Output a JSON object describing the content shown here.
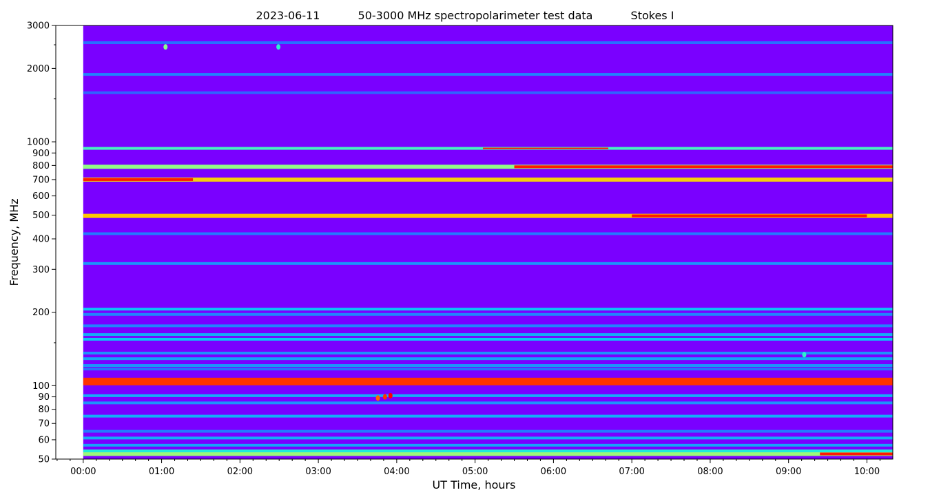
{
  "chart_data": {
    "type": "heatmap",
    "title_parts": [
      "2023-06-11",
      "50-3000 MHz spectropolarimeter test data",
      "Stokes I"
    ],
    "xlabel": "UT Time, hours",
    "ylabel": "Frequency, MHz",
    "x_unit": "hours UT",
    "xlim": [
      -0.35,
      10.33
    ],
    "y_scale": "log",
    "ylim": [
      50,
      3000
    ],
    "data_start_hour": 0,
    "x_ticks": [
      {
        "value": 0,
        "label": "00:00"
      },
      {
        "value": 1,
        "label": "01:00"
      },
      {
        "value": 2,
        "label": "02:00"
      },
      {
        "value": 3,
        "label": "03:00"
      },
      {
        "value": 4,
        "label": "04:00"
      },
      {
        "value": 5,
        "label": "05:00"
      },
      {
        "value": 6,
        "label": "06:00"
      },
      {
        "value": 7,
        "label": "07:00"
      },
      {
        "value": 8,
        "label": "08:00"
      },
      {
        "value": 9,
        "label": "09:00"
      },
      {
        "value": 10,
        "label": "10:00"
      }
    ],
    "y_ticks": [
      {
        "value": 50,
        "label": "50"
      },
      {
        "value": 60,
        "label": "60"
      },
      {
        "value": 70,
        "label": "70"
      },
      {
        "value": 80,
        "label": "80"
      },
      {
        "value": 90,
        "label": "90"
      },
      {
        "value": 100,
        "label": "100"
      },
      {
        "value": 200,
        "label": "200"
      },
      {
        "value": 300,
        "label": "300"
      },
      {
        "value": 400,
        "label": "400"
      },
      {
        "value": 500,
        "label": "500"
      },
      {
        "value": 600,
        "label": "600"
      },
      {
        "value": 700,
        "label": "700"
      },
      {
        "value": 800,
        "label": "800"
      },
      {
        "value": 900,
        "label": "900"
      },
      {
        "value": 1000,
        "label": "1000"
      },
      {
        "value": 2000,
        "label": "2000"
      },
      {
        "value": 3000,
        "label": "3000"
      }
    ],
    "y_minor_ticks": [
      1500,
      2500,
      150
    ],
    "colormap": "rainbow",
    "background_color": "#7a00ff",
    "bands": [
      {
        "freq": 52.5,
        "intensity": 0.62,
        "hot_from": 9.4,
        "hot_to": 10.33
      },
      {
        "freq": 54,
        "intensity": 0.45
      },
      {
        "freq": 57,
        "intensity": 0.28
      },
      {
        "freq": 61,
        "intensity": 0.3
      },
      {
        "freq": 65,
        "intensity": 0.2
      },
      {
        "freq": 75,
        "intensity": 0.3
      },
      {
        "freq": 85,
        "intensity": 0.25
      },
      {
        "freq": 91,
        "intensity": 0.3
      },
      {
        "freq": 104,
        "intensity": 1.0
      },
      {
        "freq": 117,
        "intensity": 0.18
      },
      {
        "freq": 121,
        "intensity": 0.25
      },
      {
        "freq": 129,
        "intensity": 0.28
      },
      {
        "freq": 136,
        "intensity": 0.25
      },
      {
        "freq": 155,
        "intensity": 0.35
      },
      {
        "freq": 162,
        "intensity": 0.3
      },
      {
        "freq": 176,
        "intensity": 0.22
      },
      {
        "freq": 196,
        "intensity": 0.22
      },
      {
        "freq": 206,
        "intensity": 0.35
      },
      {
        "freq": 317,
        "intensity": 0.25
      },
      {
        "freq": 420,
        "intensity": 0.2
      },
      {
        "freq": 497,
        "intensity": 0.82,
        "hot_from": 7.0,
        "hot_to": 10.0
      },
      {
        "freq": 700,
        "intensity": 0.8,
        "hot_from": 0,
        "hot_to": 1.4
      },
      {
        "freq": 790,
        "intensity": 0.6,
        "hot_from": 5.5,
        "hot_to": 10.33
      },
      {
        "freq": 940,
        "intensity": 0.5,
        "hot_from": 5.1,
        "hot_to": 6.7
      },
      {
        "freq": 1590,
        "intensity": 0.15
      },
      {
        "freq": 1890,
        "intensity": 0.22
      },
      {
        "freq": 2550,
        "intensity": 0.18
      }
    ],
    "bursts": [
      {
        "time": 3.76,
        "freq": 89,
        "intensity": 0.9
      },
      {
        "time": 3.85,
        "freq": 90,
        "intensity": 0.95
      },
      {
        "time": 3.92,
        "freq": 91,
        "intensity": 1.0
      },
      {
        "time": 1.05,
        "freq": 2450,
        "intensity": 0.6
      },
      {
        "time": 2.49,
        "freq": 2450,
        "intensity": 0.5
      },
      {
        "time": 9.2,
        "freq": 134,
        "intensity": 0.5
      }
    ]
  }
}
